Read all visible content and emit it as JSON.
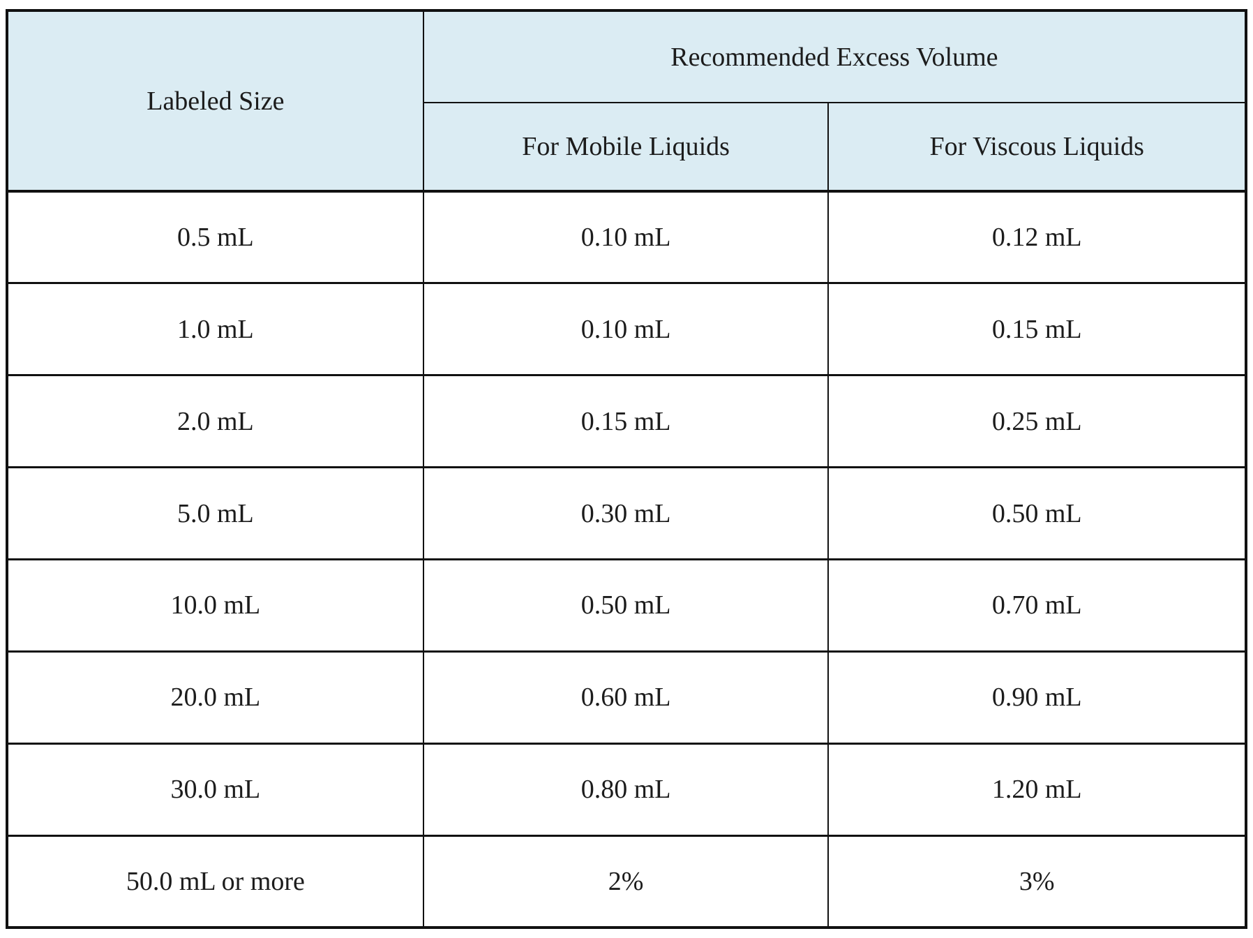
{
  "table": {
    "header": {
      "labeled_size": "Labeled Size",
      "group": "Recommended Excess Volume",
      "col_mobile": "For Mobile Liquids",
      "col_viscous": "For Viscous Liquids"
    },
    "rows": [
      {
        "size": "0.5 mL",
        "mobile": "0.10 mL",
        "viscous": "0.12 mL"
      },
      {
        "size": "1.0 mL",
        "mobile": "0.10 mL",
        "viscous": "0.15 mL"
      },
      {
        "size": "2.0 mL",
        "mobile": "0.15 mL",
        "viscous": "0.25 mL"
      },
      {
        "size": "5.0 mL",
        "mobile": "0.30 mL",
        "viscous": "0.50 mL"
      },
      {
        "size": "10.0 mL",
        "mobile": "0.50 mL",
        "viscous": "0.70 mL"
      },
      {
        "size": "20.0 mL",
        "mobile": "0.60 mL",
        "viscous": "0.90 mL"
      },
      {
        "size": "30.0 mL",
        "mobile": "0.80 mL",
        "viscous": "1.20 mL"
      },
      {
        "size": "50.0 mL or more",
        "mobile": "2%",
        "viscous": "3%"
      }
    ],
    "colors": {
      "header_bg": "#dbecf3",
      "border": "#111111",
      "text": "#1c1c1c"
    }
  }
}
